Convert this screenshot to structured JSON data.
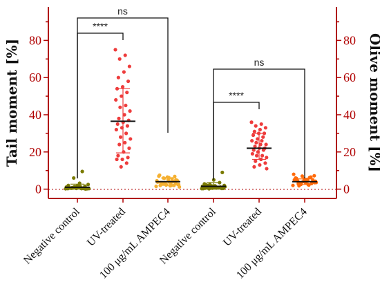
{
  "chart_data": {
    "type": "scatter",
    "ylabel": "Tail moment [%]",
    "y2label": "Olive moment [%]",
    "ylim": [
      -5,
      98
    ],
    "yticks": [
      "0",
      "20",
      "40",
      "60",
      "80"
    ],
    "y2ticks": [
      "0",
      "20",
      "40",
      "60",
      "80"
    ],
    "reference_line": 0,
    "categories": [
      "Negative control",
      "UV-treated",
      "100 μg/mL AMPEC4",
      "Negative control",
      "UV-treated",
      "100 μg/mL AMPEC4"
    ],
    "series": [
      {
        "axis": "tail",
        "color": "#7a7a00",
        "mean": 1.0,
        "sd_low": 0.0,
        "sd_high": 2.7,
        "points": [
          0.2,
          0.5,
          0.8,
          0.3,
          1.2,
          0.6,
          0.1,
          1.5,
          2.0,
          0.4,
          0.9,
          1.1,
          0.3,
          0.7,
          2.5,
          3.2,
          0.5,
          0.2,
          1.8,
          0.6,
          0.4,
          1.0,
          0.8,
          9.5,
          6.0,
          0.3,
          1.4,
          0.5,
          0.2,
          0.9,
          0.7,
          1.6,
          0.4,
          0.3,
          0.6,
          1.3
        ]
      },
      {
        "axis": "tail",
        "color": "#ee3c3c",
        "mean": 36.5,
        "sd_low": 19.5,
        "sd_high": 54.0,
        "points": [
          75,
          72,
          70,
          66,
          63,
          60,
          58,
          55,
          54,
          52,
          50,
          48,
          45,
          44,
          42,
          40,
          38,
          37,
          36,
          35,
          34,
          33,
          32,
          30,
          28,
          27,
          25,
          24,
          22,
          20,
          18,
          17,
          16,
          16,
          14,
          12
        ]
      },
      {
        "axis": "tail",
        "color": "#f5b030",
        "mean": 4.0,
        "sd_low": 2.0,
        "sd_high": 6.0,
        "points": [
          1.5,
          2.0,
          3.0,
          2.5,
          4.0,
          3.5,
          5.0,
          6.5,
          7.0,
          2.0,
          3.0,
          4.5,
          5.5,
          6.0,
          2.5,
          1.8,
          3.2,
          4.8,
          5.2,
          7.5,
          6.8,
          2.2,
          3.8,
          4.2,
          5.8,
          1.2,
          2.8,
          3.5,
          4.5,
          6.2,
          2.0,
          3.0
        ]
      },
      {
        "axis": "olive",
        "color": "#7a7a00",
        "mean": 1.5,
        "sd_low": 0.0,
        "sd_high": 3.5,
        "points": [
          0.3,
          0.8,
          1.2,
          0.5,
          1.8,
          2.2,
          0.4,
          1.0,
          2.8,
          3.5,
          0.6,
          1.5,
          0.9,
          0.2,
          2.0,
          1.4,
          0.7,
          9.0,
          5.0,
          0.5,
          1.1,
          1.7,
          0.3,
          0.8,
          2.5,
          1.3,
          0.6,
          1.9,
          0.4,
          1.0,
          2.2,
          0.9,
          0.5
        ]
      },
      {
        "axis": "olive",
        "color": "#ee3c3c",
        "mean": 22.0,
        "sd_low": 16.0,
        "sd_high": 30.0,
        "points": [
          36,
          35,
          34,
          33,
          32,
          31,
          30,
          30,
          29,
          28,
          27,
          26,
          26,
          25,
          24,
          24,
          23,
          22,
          22,
          21,
          21,
          20,
          19,
          18,
          18,
          17,
          16,
          15,
          14,
          13,
          12,
          11
        ]
      },
      {
        "axis": "olive",
        "color": "#ff6a0a",
        "mean": 4.0,
        "sd_low": 2.5,
        "sd_high": 5.5,
        "points": [
          2.0,
          2.5,
          3.0,
          3.5,
          4.0,
          4.5,
          5.0,
          5.5,
          6.0,
          6.5,
          7.0,
          8.0,
          2.2,
          3.2,
          4.2,
          5.2,
          2.8,
          3.8,
          4.8,
          5.8,
          3.0,
          4.0,
          5.0,
          6.2,
          2.6,
          3.6,
          4.6,
          1.8,
          7.2,
          3.4,
          4.4
        ]
      }
    ],
    "brackets": [
      {
        "from": 0,
        "to": 2,
        "label": "ns"
      },
      {
        "from": 0,
        "to": 1,
        "label": "****"
      },
      {
        "from": 3,
        "to": 5,
        "label": "ns"
      },
      {
        "from": 3,
        "to": 4,
        "label": "****"
      }
    ],
    "colors": {
      "axis": "#b00000",
      "reference_line": "#b00000"
    }
  }
}
